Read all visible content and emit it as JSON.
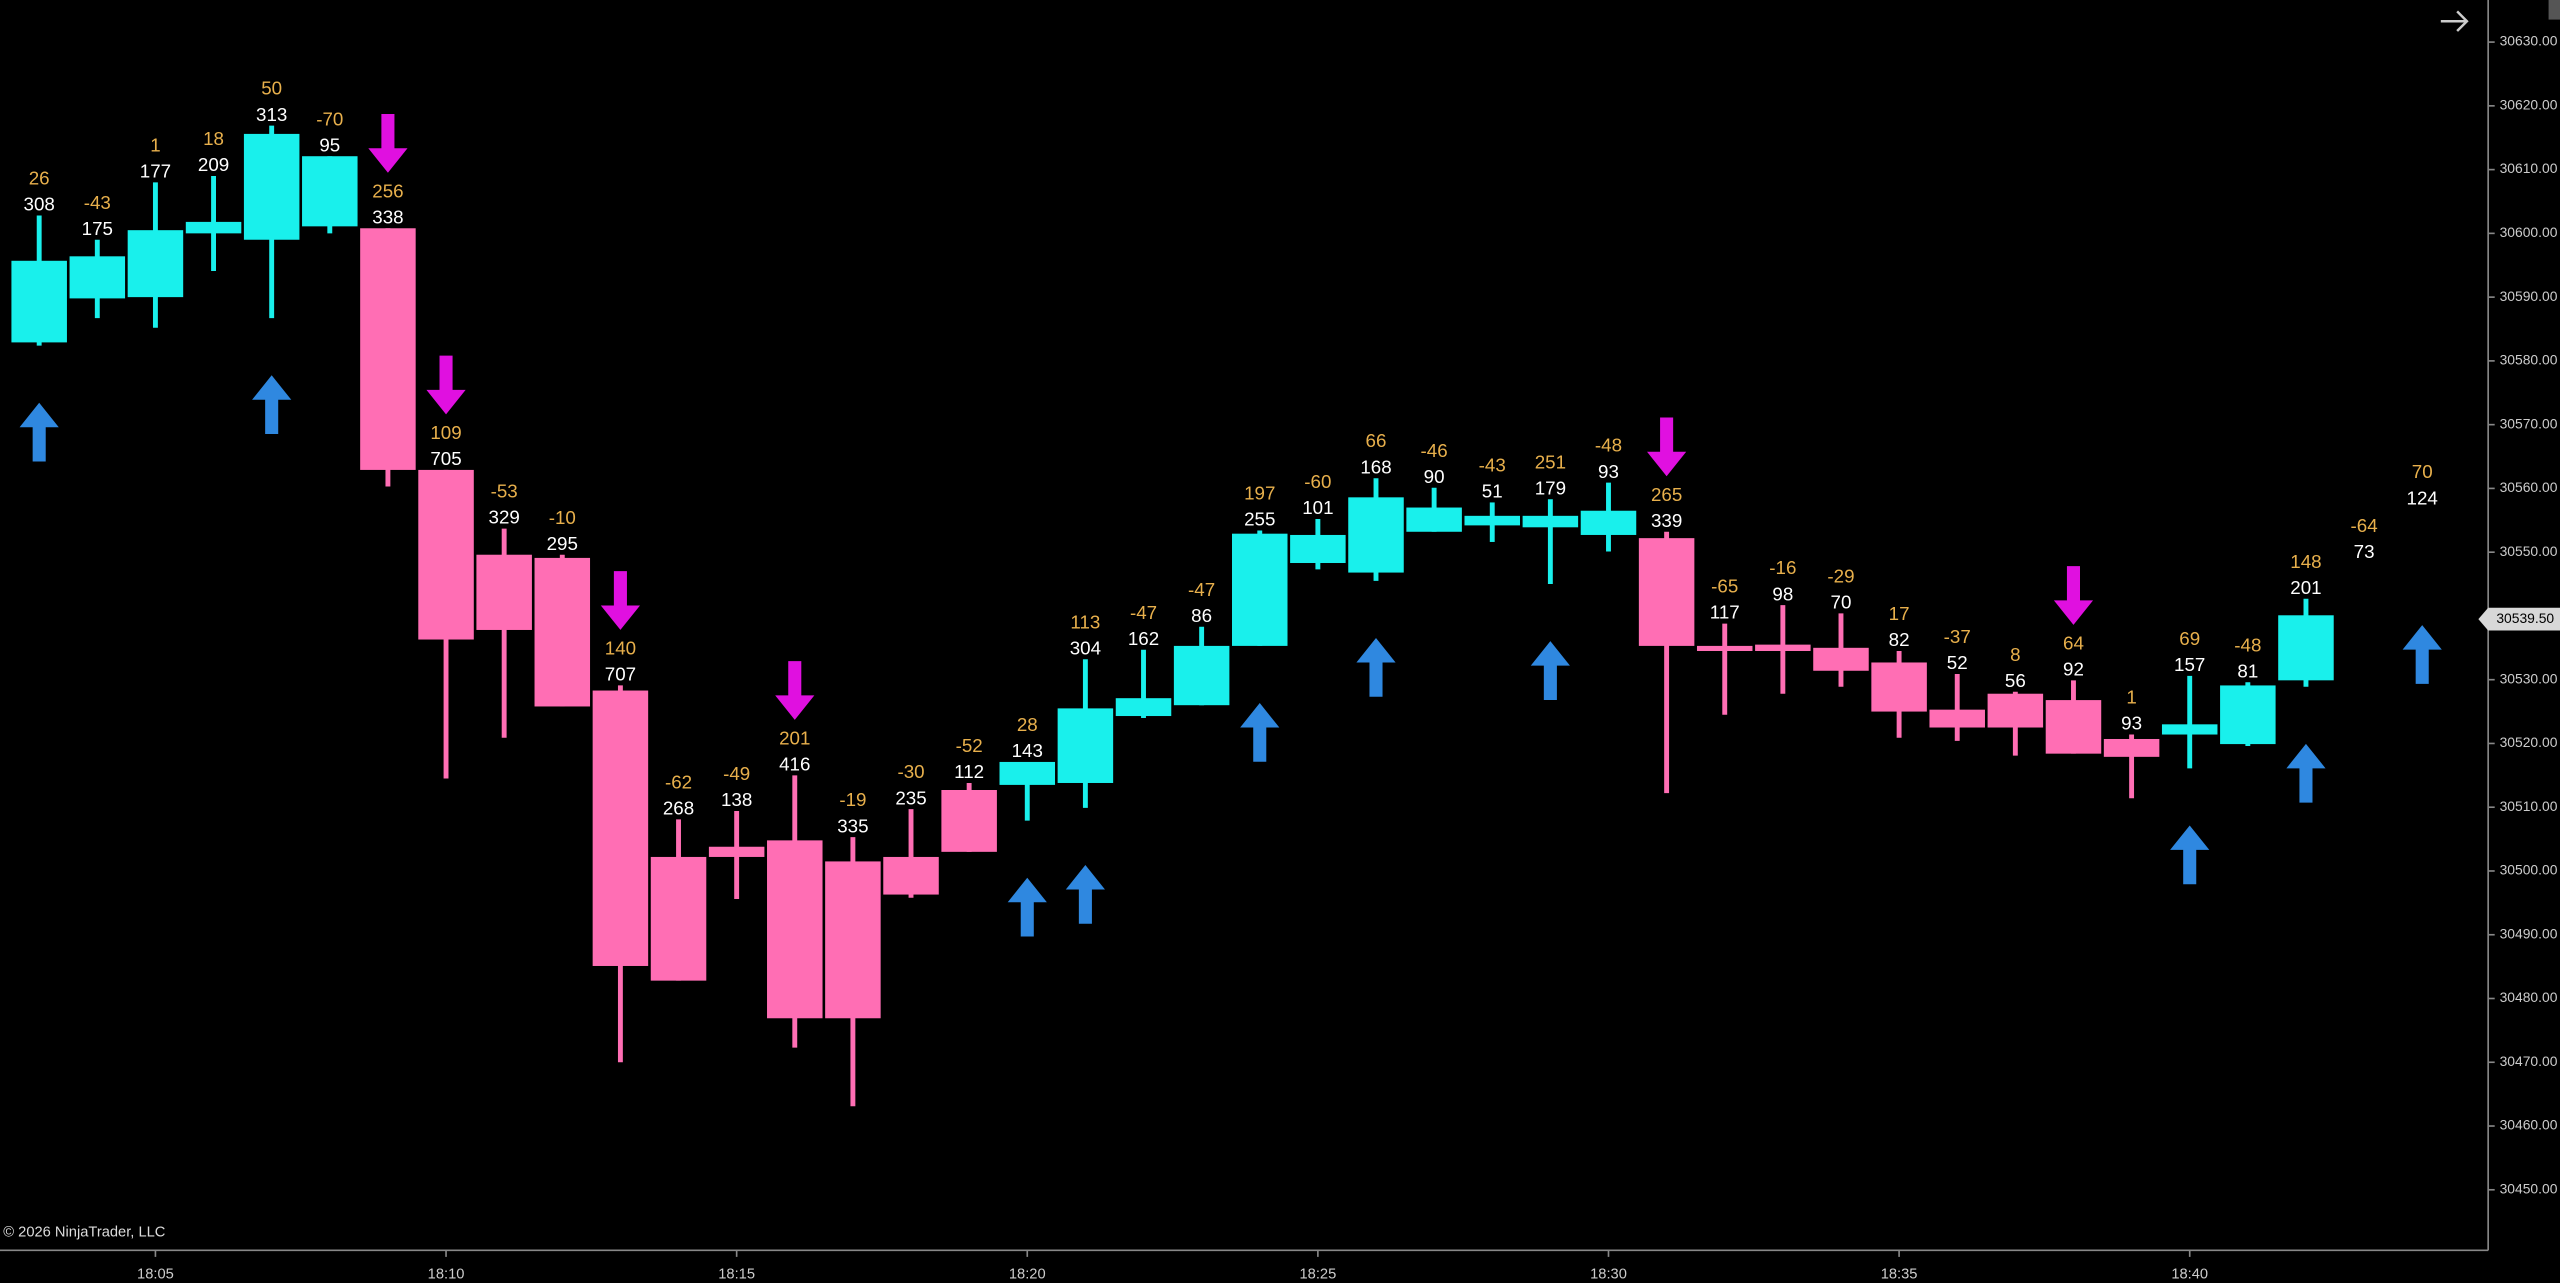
{
  "chart_data": {
    "type": "candlestick",
    "categories": [
      null,
      null,
      "18:05",
      null,
      null,
      null,
      null,
      "18:10",
      null,
      null,
      null,
      null,
      "18:15",
      null,
      null,
      null,
      null,
      "18:20",
      null,
      null,
      null,
      null,
      "18:25",
      null,
      null,
      null,
      null,
      "18:30",
      null,
      null,
      null,
      null,
      "18:35",
      null,
      null,
      null,
      null,
      "18:40",
      null,
      null,
      null,
      null
    ],
    "open": [
      30582.9,
      30589.8,
      30590.0,
      30600.0,
      30599.0,
      30601.1,
      30600.8,
      30562.9,
      30549.6,
      30549.1,
      30528.3,
      30502.2,
      30503.8,
      30504.8,
      30501.5,
      30502.2,
      30512.7,
      30513.5,
      30513.8,
      30524.3,
      30526.0,
      30535.3,
      30548.3,
      30546.8,
      30553.2,
      30554.2,
      30553.9,
      30552.7,
      30552.2,
      30535.3,
      30535.5,
      30535.0,
      30532.7,
      30525.3,
      30527.8,
      30526.8,
      30520.7,
      30521.4,
      30519.9,
      30529.9,
      null,
      null
    ],
    "high": [
      30602.8,
      30599.0,
      30608.0,
      30609.0,
      30616.9,
      30612.1,
      30600.8,
      30562.9,
      30553.7,
      30549.6,
      30529.1,
      30508.1,
      30509.4,
      30515.0,
      30505.3,
      30509.7,
      30513.8,
      30517.1,
      30533.2,
      30534.7,
      30538.3,
      30553.4,
      30555.2,
      30561.6,
      30560.1,
      30557.8,
      30558.3,
      30560.9,
      30553.2,
      30538.8,
      30541.7,
      30540.4,
      30534.5,
      30530.9,
      30528.1,
      30529.9,
      30521.4,
      30530.6,
      30529.6,
      30542.7,
      null,
      null
    ],
    "low": [
      30582.4,
      30586.7,
      30585.2,
      30594.1,
      30586.7,
      30600.0,
      30560.3,
      30514.5,
      30520.9,
      30525.8,
      30470.0,
      30482.8,
      30495.6,
      30472.3,
      30463.1,
      30495.8,
      30503.0,
      30507.9,
      30509.9,
      30524.0,
      30526.0,
      30535.3,
      30547.3,
      30545.5,
      30553.2,
      30551.6,
      30545.0,
      30550.1,
      30512.2,
      30524.5,
      30527.8,
      30528.9,
      30520.9,
      30520.4,
      30518.1,
      30518.4,
      30511.4,
      30516.1,
      30519.6,
      30528.9,
      null,
      null
    ],
    "close": [
      30595.7,
      30596.4,
      30600.5,
      30601.8,
      30615.6,
      30612.1,
      30562.9,
      30536.3,
      30537.8,
      30525.8,
      30485.1,
      30482.8,
      30502.2,
      30476.9,
      30476.9,
      30496.3,
      30503.0,
      30517.1,
      30525.5,
      30527.1,
      30535.3,
      30552.9,
      30552.7,
      30558.6,
      30557.0,
      30555.7,
      30555.7,
      30556.5,
      30535.3,
      30534.5,
      30534.5,
      30531.4,
      30525.0,
      30522.5,
      30522.5,
      30518.4,
      30517.9,
      30523.0,
      30529.1,
      30540.1,
      null,
      null
    ],
    "delta": [
      26,
      -43,
      1,
      18,
      50,
      -70,
      256,
      109,
      -53,
      -10,
      140,
      -62,
      -49,
      201,
      -19,
      -30,
      -52,
      28,
      113,
      -47,
      -47,
      197,
      -60,
      66,
      -46,
      -43,
      251,
      -48,
      265,
      -65,
      -16,
      -29,
      17,
      -37,
      8,
      64,
      1,
      69,
      -48,
      148,
      -64,
      70
    ],
    "volume": [
      308,
      175,
      177,
      209,
      313,
      95,
      338,
      705,
      329,
      295,
      707,
      268,
      138,
      416,
      335,
      235,
      112,
      143,
      304,
      162,
      86,
      255,
      101,
      168,
      90,
      51,
      179,
      93,
      339,
      117,
      98,
      70,
      82,
      52,
      56,
      92,
      93,
      157,
      81,
      201,
      73,
      124
    ],
    "signals": [
      "up",
      null,
      null,
      null,
      "up",
      null,
      "down",
      "down",
      null,
      null,
      "down",
      null,
      null,
      "down",
      null,
      null,
      null,
      "up",
      "up",
      null,
      null,
      "up",
      null,
      "up",
      null,
      null,
      "up",
      null,
      "down",
      null,
      null,
      null,
      null,
      null,
      null,
      "down",
      null,
      "up",
      null,
      "up",
      null,
      "up"
    ],
    "ylim": [
      30440.5,
      30636.6
    ],
    "yticks": [
      {
        "value": 30630,
        "label": "30630.00"
      },
      {
        "value": 30620,
        "label": "30620.00"
      },
      {
        "value": 30610,
        "label": "30610.00"
      },
      {
        "value": 30600,
        "label": "30600.00"
      },
      {
        "value": 30590,
        "label": "30590.00"
      },
      {
        "value": 30580,
        "label": "30580.00"
      },
      {
        "value": 30570,
        "label": "30570.00"
      },
      {
        "value": 30560,
        "label": "30560.00"
      },
      {
        "value": 30550,
        "label": "30550.00"
      },
      {
        "value": 30540,
        "label": "30540.00"
      },
      {
        "value": 30530,
        "label": "30530.00"
      },
      {
        "value": 30520,
        "label": "30520.00"
      },
      {
        "value": 30510,
        "label": "30510.00"
      },
      {
        "value": 30500,
        "label": "30500.00"
      },
      {
        "value": 30490,
        "label": "30490.00"
      },
      {
        "value": 30480,
        "label": "30480.00"
      },
      {
        "value": 30470,
        "label": "30470.00"
      },
      {
        "value": 30460,
        "label": "30460.00"
      },
      {
        "value": 30450,
        "label": "30450.00"
      }
    ],
    "last_price": {
      "value": 30539.5,
      "label": "30539.50"
    },
    "up_color": "#19f0ec",
    "down_color": "#ff6eb4",
    "signal_up_color": "#2f88e0",
    "signal_down_color": "#e010e0",
    "delta_color": "#e8b04c",
    "volume_color": "#ffffff",
    "copyright": "© 2026 NinjaTrader, LLC"
  }
}
